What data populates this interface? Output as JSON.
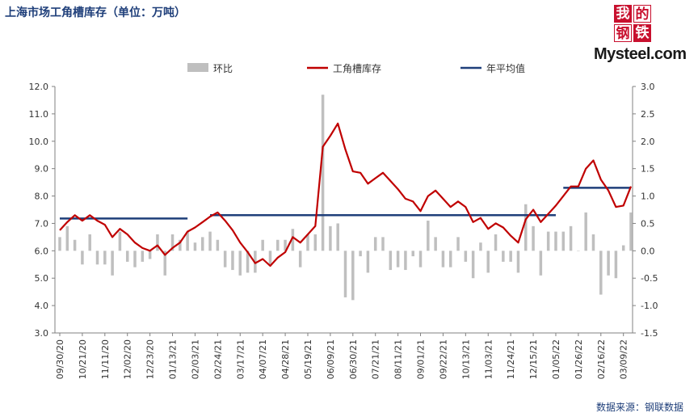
{
  "title": "上海市场工角槽库存（单位：万吨）",
  "logo": {
    "chars": [
      "我",
      "的",
      "钢",
      "铁"
    ],
    "text": "Mysteel.com"
  },
  "source": "数据来源：钢联数据",
  "chart_data": {
    "type": "line",
    "legend": [
      {
        "label": "环比",
        "color": "#bfbfbf",
        "kind": "bar"
      },
      {
        "label": "工角槽库存",
        "color": "#c00000",
        "kind": "line"
      },
      {
        "label": "年平均值",
        "color": "#1f3f7a",
        "kind": "line"
      }
    ],
    "legend_position": "top",
    "y_left": {
      "min": 3.0,
      "max": 12.0,
      "step": 1.0,
      "ticks": [
        "3.0",
        "4.0",
        "5.0",
        "6.0",
        "7.0",
        "8.0",
        "9.0",
        "10.0",
        "11.0",
        "12.0"
      ]
    },
    "y_right": {
      "min": -1.5,
      "max": 3.0,
      "step": 0.5,
      "ticks": [
        "-1.5",
        "-1.0",
        "-0.5",
        "0.0",
        "0.5",
        "1.0",
        "1.5",
        "2.0",
        "2.5",
        "3.0"
      ]
    },
    "x_tick_labels": [
      "09/30/20",
      "10/21/20",
      "11/11/20",
      "12/02/20",
      "12/23/20",
      "01/13/21",
      "02/03/21",
      "02/24/21",
      "03/17/21",
      "04/07/21",
      "04/28/21",
      "05/19/21",
      "06/09/21",
      "06/30/21",
      "07/21/21",
      "08/11/21",
      "09/01/21",
      "09/22/21",
      "10/13/21",
      "11/03/21",
      "11/24/21",
      "12/15/21",
      "01/05/22",
      "01/26/22",
      "02/16/22",
      "03/09/22"
    ],
    "grid": false,
    "series": [
      {
        "name": "工角槽库存",
        "axis": "left",
        "values": [
          6.75,
          7.05,
          7.3,
          7.1,
          7.3,
          7.1,
          6.95,
          6.5,
          6.8,
          6.6,
          6.3,
          6.1,
          6.0,
          6.2,
          5.85,
          6.1,
          6.3,
          6.7,
          6.85,
          7.05,
          7.25,
          7.4,
          7.1,
          6.75,
          6.3,
          5.95,
          5.55,
          5.7,
          5.45,
          5.75,
          5.95,
          6.5,
          6.3,
          6.6,
          6.9,
          9.8,
          10.2,
          10.65,
          9.7,
          8.9,
          8.85,
          8.45,
          8.65,
          8.85,
          8.55,
          8.25,
          7.9,
          7.8,
          7.45,
          8.0,
          8.2,
          7.9,
          7.6,
          7.8,
          7.6,
          7.05,
          7.2,
          6.8,
          7.0,
          6.85,
          6.55,
          6.3,
          7.15,
          7.5,
          7.05,
          7.35,
          7.65,
          8.0,
          8.35,
          8.35,
          9.0,
          9.3,
          8.6,
          8.2,
          7.6,
          7.65,
          8.35
        ]
      },
      {
        "name": "环比",
        "axis": "right",
        "values": [
          0.25,
          0.45,
          0.2,
          -0.25,
          0.3,
          -0.25,
          -0.25,
          -0.45,
          0.35,
          -0.2,
          -0.3,
          -0.2,
          -0.15,
          0.3,
          -0.45,
          0.3,
          0.2,
          0.35,
          0.15,
          0.25,
          0.35,
          0.2,
          -0.3,
          -0.35,
          -0.45,
          -0.4,
          -0.4,
          0.2,
          -0.25,
          0.2,
          0.2,
          0.4,
          -0.3,
          0.3,
          0.3,
          2.85,
          0.45,
          0.5,
          -0.85,
          -0.9,
          -0.1,
          -0.4,
          0.25,
          0.25,
          -0.35,
          -0.3,
          -0.35,
          -0.1,
          -0.3,
          0.55,
          0.25,
          -0.3,
          -0.3,
          0.25,
          -0.2,
          -0.5,
          0.15,
          -0.4,
          0.3,
          -0.2,
          -0.2,
          -0.4,
          0.85,
          0.45,
          -0.45,
          0.35,
          0.35,
          0.35,
          0.45,
          0.0,
          0.7,
          0.3,
          -0.8,
          -0.45,
          -0.5,
          0.1,
          0.7
        ]
      },
      {
        "name": "年平均值",
        "axis": "left",
        "segments": [
          {
            "from_index": 0,
            "to_index": 17,
            "value": 7.18
          },
          {
            "from_index": 20,
            "to_index": 66,
            "value": 7.3
          },
          {
            "from_index": 67,
            "to_index": 76,
            "value": 8.3
          }
        ]
      }
    ]
  }
}
